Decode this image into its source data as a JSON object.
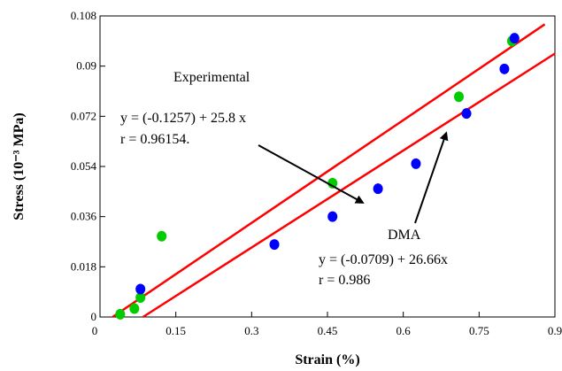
{
  "chart_data": {
    "type": "scatter",
    "xlabel": "Strain (%)",
    "ylabel": "Stress (10⁻³ MPa)",
    "xlim": [
      0,
      0.9
    ],
    "ylim": [
      0,
      0.108
    ],
    "x_ticks": [
      "0",
      "0.15",
      "0.3",
      "0.45",
      "0.6",
      "0.75",
      "0.9"
    ],
    "y_ticks": [
      "0",
      "0.018",
      "0.036",
      "0.054",
      "0.072",
      "0.09",
      "0.108"
    ],
    "grid": false,
    "series": [
      {
        "color": "#00cc00",
        "points": [
          [
            0.04,
            0.001
          ],
          [
            0.068,
            0.003
          ],
          [
            0.08,
            0.007
          ],
          [
            0.122,
            0.029
          ],
          [
            0.46,
            0.048
          ],
          [
            0.71,
            0.079
          ],
          [
            0.815,
            0.099
          ]
        ]
      },
      {
        "color": "#0000ff",
        "points": [
          [
            0.08,
            0.01
          ],
          [
            0.345,
            0.026
          ],
          [
            0.46,
            0.036
          ],
          [
            0.55,
            0.046
          ],
          [
            0.625,
            0.055
          ],
          [
            0.725,
            0.073
          ],
          [
            0.8,
            0.089
          ],
          [
            0.82,
            0.1
          ]
        ]
      }
    ],
    "fit_lines": [
      {
        "color": "#ff0000",
        "points": [
          [
            0.025,
            0
          ],
          [
            0.88,
            0.105
          ]
        ]
      },
      {
        "color": "#ff0000",
        "points": [
          [
            0.085,
            0
          ],
          [
            0.9,
            0.0945
          ]
        ]
      }
    ],
    "annotations": [
      {
        "lines": [
          "Experimental"
        ],
        "points_to": [
          0.52,
          0.041
        ]
      },
      {
        "lines": [
          "y = (-0.1257) + 25.8 x",
          "r = 0.96154."
        ]
      },
      {
        "lines": [
          "DMA"
        ],
        "points_to": [
          0.685,
          0.066
        ]
      },
      {
        "lines": [
          "y = (-0.0709) + 26.66x",
          "r = 0.986"
        ]
      }
    ]
  }
}
